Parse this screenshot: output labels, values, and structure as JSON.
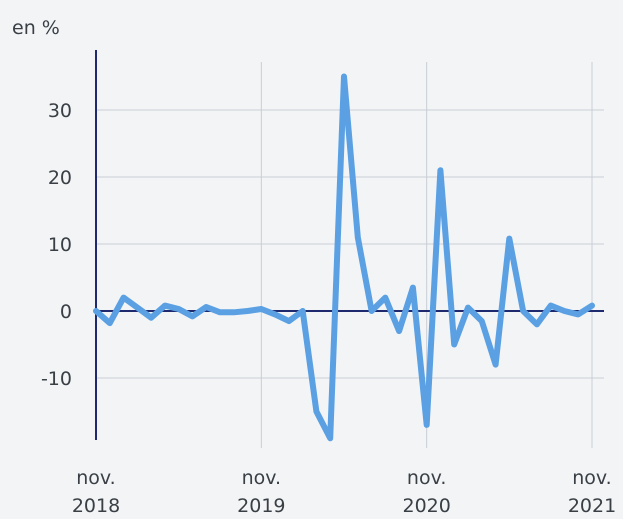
{
  "chart_data": {
    "type": "line",
    "unit_label": "en %",
    "title": "",
    "xlabel": "",
    "ylabel": "",
    "x_tick_labels": [
      [
        "nov.",
        "2018"
      ],
      [
        "nov.",
        "2019"
      ],
      [
        "nov.",
        "2020"
      ],
      [
        "nov.",
        "2021"
      ]
    ],
    "y_ticks": [
      30,
      20,
      10,
      0,
      -10
    ],
    "y_tick_labels": [
      "30",
      "20",
      "10",
      "0",
      "-10"
    ],
    "ylim": [
      -19,
      40
    ],
    "xlim": [
      0,
      36
    ],
    "grid": {
      "vertical": true,
      "horizontal": true
    },
    "colors": {
      "line": "#5aa0e3",
      "zero_line": "#1f2a6e",
      "grid": "#c9ced6"
    },
    "series": [
      {
        "values": [
          0,
          -1.8,
          2,
          0.5,
          -1,
          0.8,
          0.3,
          -0.8,
          0.6,
          -0.2,
          -0.2,
          0,
          0.3,
          -0.5,
          -1.5,
          0,
          -15,
          -19,
          35,
          11,
          0,
          2,
          -3,
          3.5,
          -17,
          21,
          -5,
          0.5,
          -1.5,
          -8,
          10.8,
          0,
          -2,
          0.8,
          0,
          -0.5,
          0.8
        ]
      }
    ]
  }
}
